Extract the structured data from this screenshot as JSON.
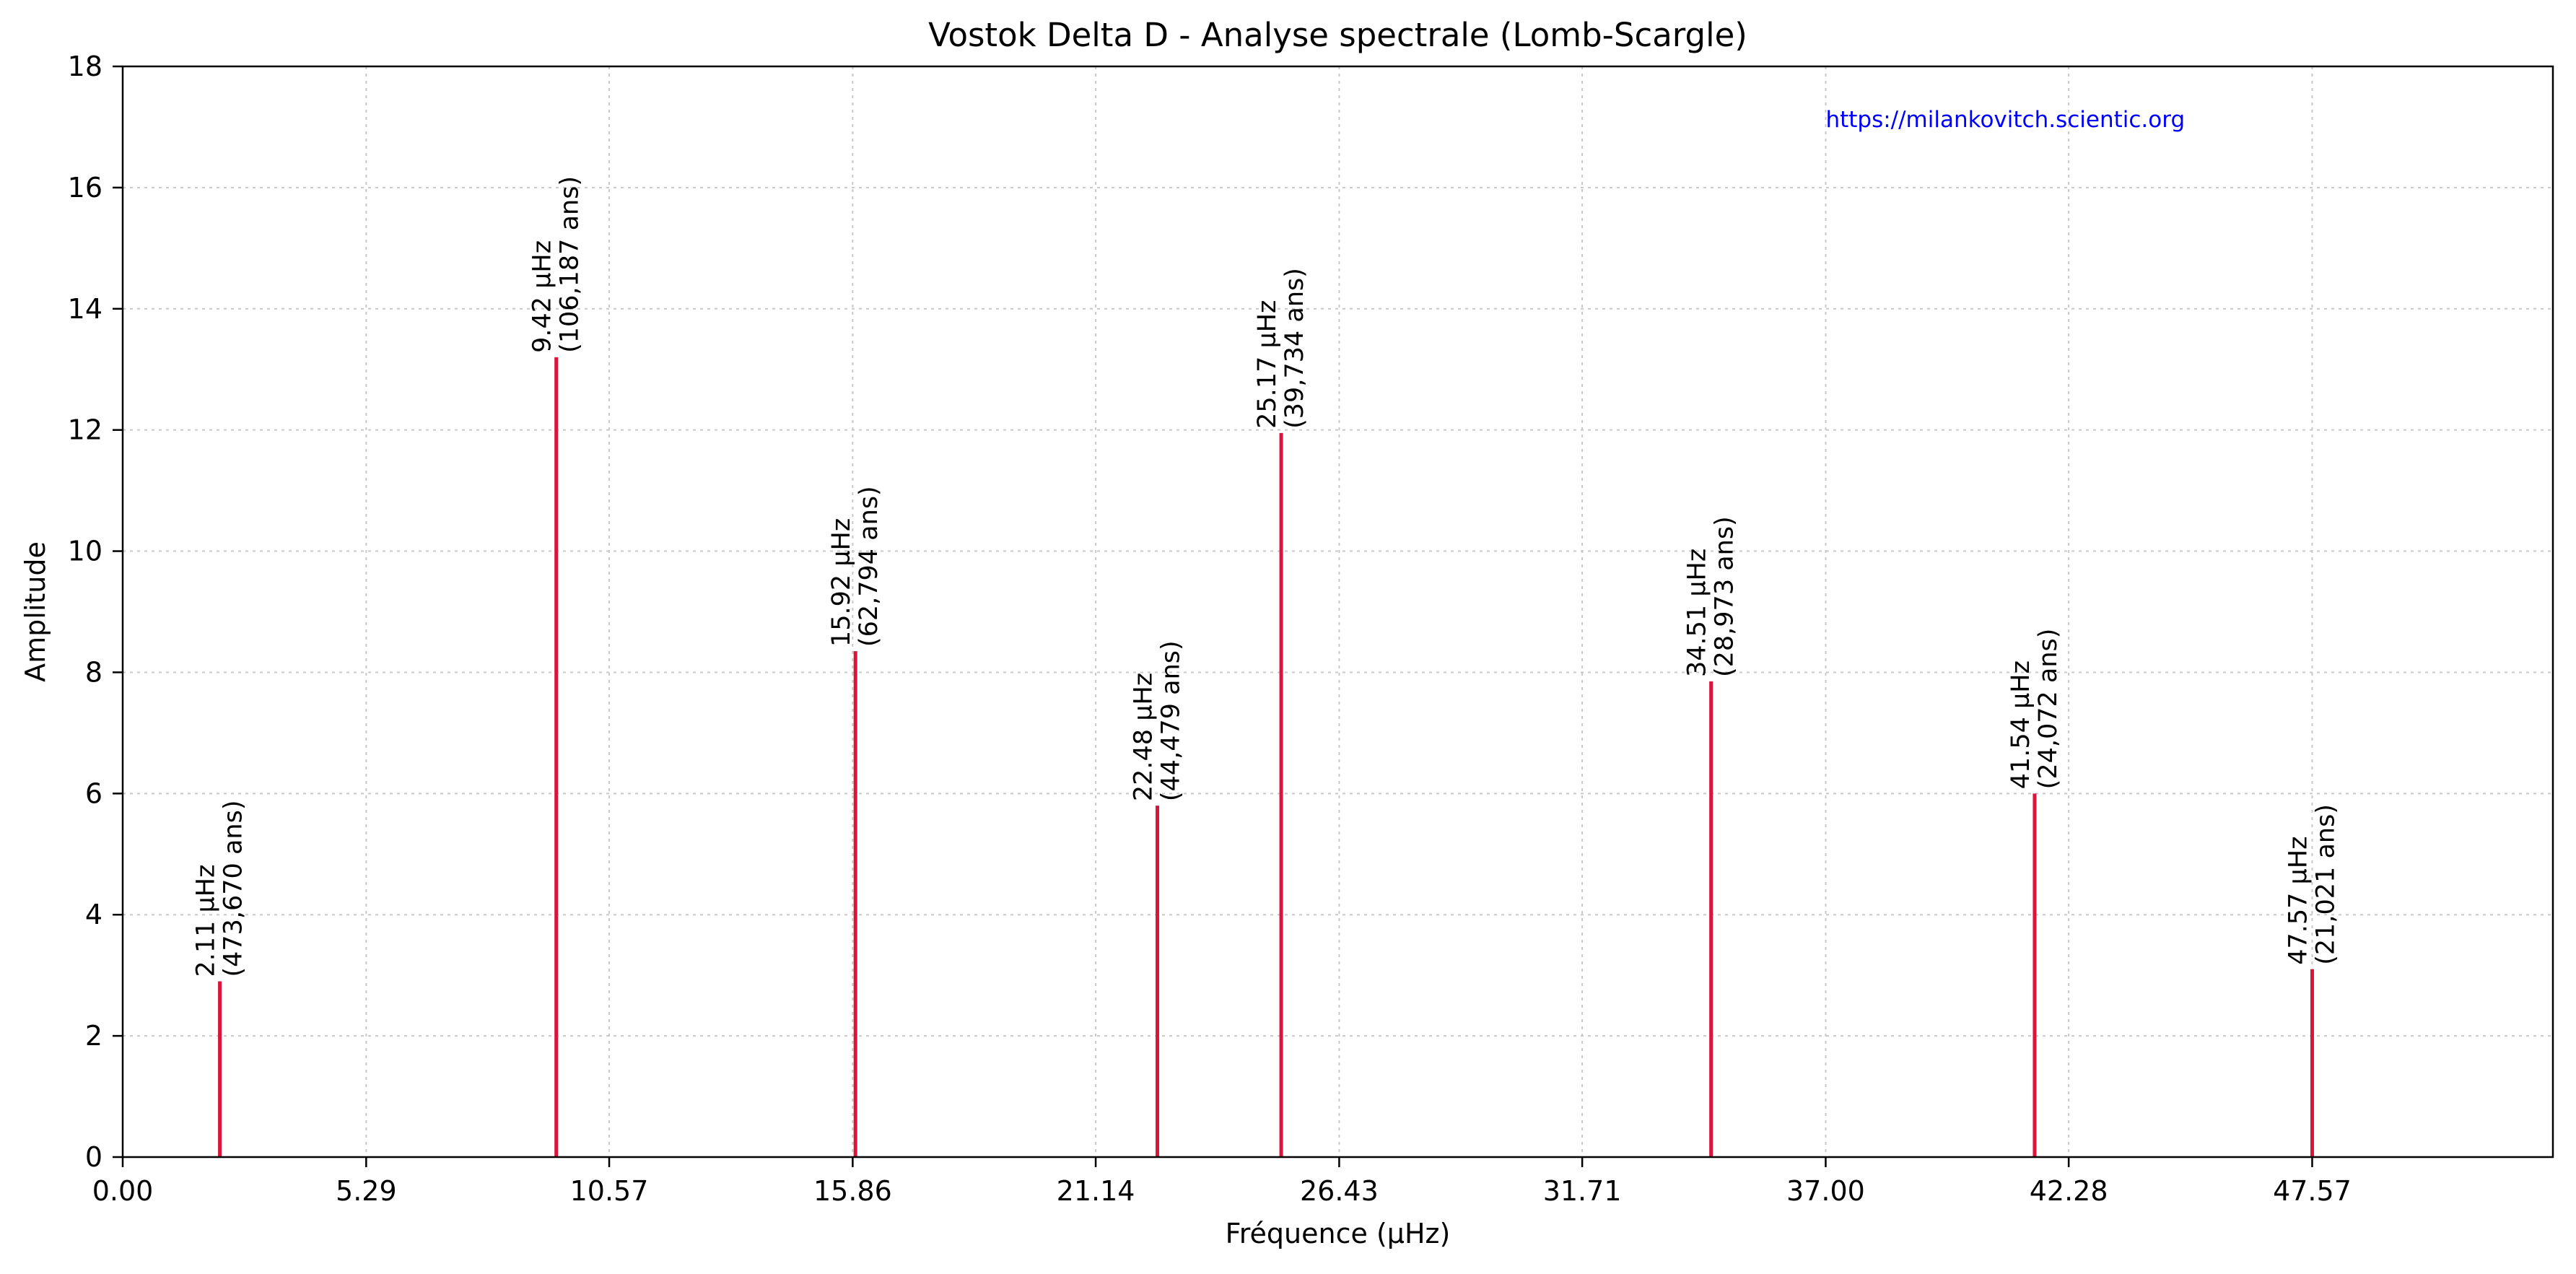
{
  "chart_data": {
    "type": "bar",
    "title": "Vostok Delta D - Analyse spectrale (Lomb-Scargle)",
    "xlabel": "Fréquence (µHz)",
    "ylabel": "Amplitude",
    "xlim": [
      0,
      52.8
    ],
    "ylim": [
      0,
      18
    ],
    "x_ticks": [
      "0.00",
      "5.29",
      "10.57",
      "15.86",
      "21.14",
      "26.43",
      "31.71",
      "37.00",
      "42.28",
      "47.57"
    ],
    "x_tick_values": [
      0,
      5.29,
      10.57,
      15.86,
      21.14,
      26.43,
      31.71,
      37.0,
      42.28,
      47.57
    ],
    "y_ticks": [
      0,
      2,
      4,
      6,
      8,
      10,
      12,
      14,
      16,
      18
    ],
    "grid": true,
    "annotation": "https://milankovitch.scientic.org",
    "line_color": "#dc143c",
    "annotation_color": "#0000ff",
    "peaks": [
      {
        "x": 2.11,
        "y": 2.9,
        "label": "2.11 µHz",
        "period": "(473,670 ans)"
      },
      {
        "x": 9.42,
        "y": 13.2,
        "label": "9.42 µHz",
        "period": "(106,187 ans)"
      },
      {
        "x": 15.92,
        "y": 8.35,
        "label": "15.92 µHz",
        "period": "(62,794 ans)"
      },
      {
        "x": 22.48,
        "y": 5.8,
        "label": "22.48 µHz",
        "period": "(44,479 ans)"
      },
      {
        "x": 25.17,
        "y": 11.95,
        "label": "25.17 µHz",
        "period": "(39,734 ans)"
      },
      {
        "x": 34.51,
        "y": 7.85,
        "label": "34.51 µHz",
        "period": "(28,973 ans)"
      },
      {
        "x": 41.54,
        "y": 6.0,
        "label": "41.54 µHz",
        "period": "(24,072 ans)"
      },
      {
        "x": 47.57,
        "y": 3.1,
        "label": "47.57 µHz",
        "period": "(21,021 ans)"
      }
    ]
  }
}
